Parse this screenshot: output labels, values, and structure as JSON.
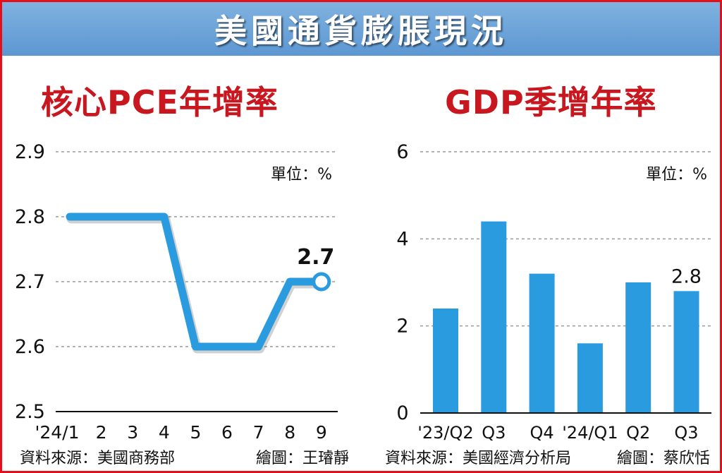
{
  "banner": {
    "title": "美國通貨膨脹現況"
  },
  "colors": {
    "frame": "#e3101a",
    "banner": "#6aa3d8",
    "title_red": "#c8171e",
    "series_blue": "#2b9be0"
  },
  "chart_data": [
    {
      "type": "line",
      "title": "核心PCE年增率",
      "unit_label": "單位：%",
      "categories": [
        "'24/1",
        "2",
        "3",
        "4",
        "5",
        "6",
        "7",
        "8",
        "9"
      ],
      "values": [
        2.8,
        2.8,
        2.8,
        2.8,
        2.6,
        2.6,
        2.6,
        2.7,
        2.7
      ],
      "yticks": [
        "2.5",
        "2.6",
        "2.7",
        "2.8",
        "2.9"
      ],
      "ylim": [
        2.5,
        2.9
      ],
      "grid": true,
      "highlight_label": "2.7",
      "source": "資料來源：美國商務部",
      "credit": "繪圖：王璿靜"
    },
    {
      "type": "bar",
      "title": "GDP季增年率",
      "unit_label": "單位：%",
      "categories": [
        "'23/Q2",
        "Q3",
        "Q4",
        "'24/Q1",
        "Q2",
        "Q3"
      ],
      "values": [
        2.4,
        4.4,
        3.2,
        1.6,
        3.0,
        2.8
      ],
      "yticks": [
        "0",
        "2",
        "4",
        "6"
      ],
      "ylim": [
        0,
        6
      ],
      "grid": true,
      "highlight_label": "2.8",
      "source": "資料來源：美國經濟分析局",
      "credit": "繪圖：蔡欣恬"
    }
  ]
}
